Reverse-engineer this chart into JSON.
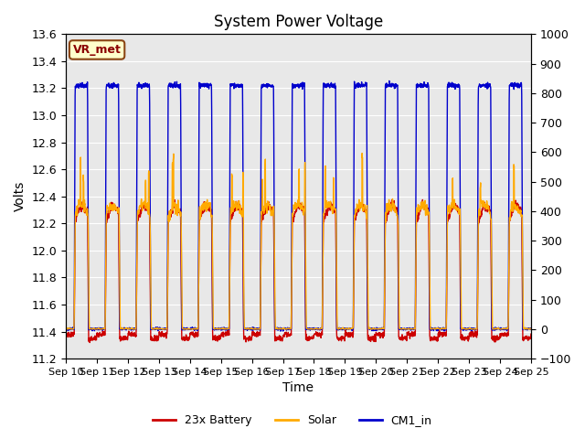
{
  "title": "System Power Voltage",
  "xlabel": "Time",
  "ylabel_left": "Volts",
  "ylim_left": [
    11.2,
    13.6
  ],
  "ylim_right": [
    -100,
    1000
  ],
  "yticks_left": [
    11.2,
    11.4,
    11.6,
    11.8,
    12.0,
    12.2,
    12.4,
    12.6,
    12.8,
    13.0,
    13.2,
    13.4,
    13.6
  ],
  "yticks_right": [
    -100,
    0,
    100,
    200,
    300,
    400,
    500,
    600,
    700,
    800,
    900,
    1000
  ],
  "xtick_labels": [
    "Sep 10",
    "Sep 11",
    "Sep 12",
    "Sep 13",
    "Sep 14",
    "Sep 15",
    "Sep 16",
    "Sep 17",
    "Sep 18",
    "Sep 19",
    "Sep 20",
    "Sep 21",
    "Sep 22",
    "Sep 23",
    "Sep 24",
    "Sep 25"
  ],
  "color_battery": "#cc0000",
  "color_solar": "#ffaa00",
  "color_cm1": "#0000cc",
  "legend_labels": [
    "23x Battery",
    "Solar",
    "CM1_in"
  ],
  "vr_met_label": "VR_met",
  "background_color": "#e8e8e8",
  "grid_color": "#ffffff",
  "title_fontsize": 12,
  "label_fontsize": 10,
  "n_days": 15,
  "n_per_day": 144
}
